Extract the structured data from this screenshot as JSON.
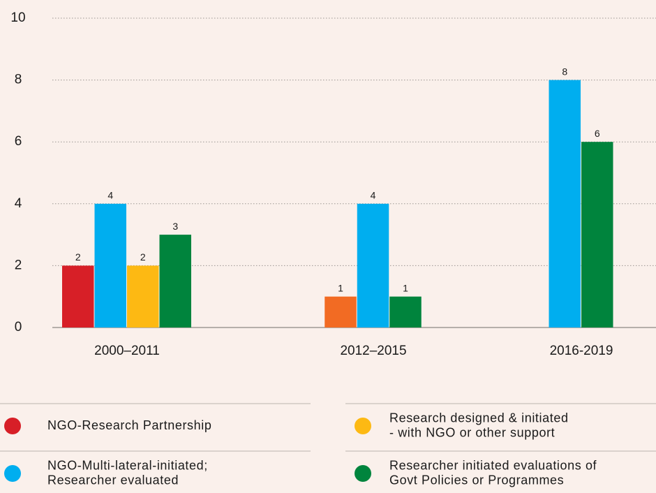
{
  "chart_data": {
    "type": "bar",
    "categories": [
      "2000–2011",
      "2012–2015",
      "2016-2019"
    ],
    "series": [
      {
        "name": "NGO-Research Partnership",
        "color": "#d71f27",
        "colors": [
          "#d71f27",
          "#f26b23",
          "#d71f27"
        ],
        "values": [
          2,
          1,
          null
        ]
      },
      {
        "name": "NGO-Multi-lateral-initiated;\nResearcher evaluated",
        "color": "#00aeef",
        "values": [
          4,
          4,
          8
        ]
      },
      {
        "name": "Research designed & initiated\n- with NGO or other support",
        "color": "#fdb913",
        "values": [
          2,
          null,
          null
        ]
      },
      {
        "name": "Researcher initiated evaluations of\nGovt Policies or Programmes",
        "color": "#00843d",
        "values": [
          3,
          1,
          6
        ]
      }
    ],
    "ylim": [
      0,
      10
    ],
    "yticks": [
      0,
      2,
      4,
      6,
      8,
      10
    ],
    "grid": true
  }
}
